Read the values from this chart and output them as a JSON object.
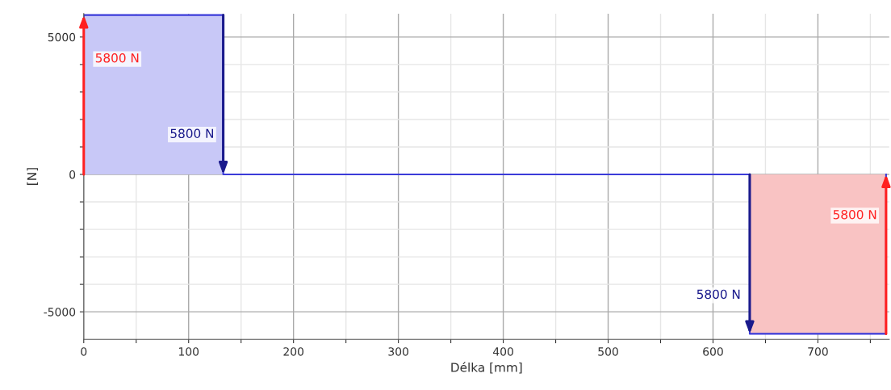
{
  "chart_data": {
    "type": "area",
    "xlabel": "Délka [mm]",
    "ylabel": "[N]",
    "xlim": [
      0,
      768
    ],
    "ylim": [
      -6000,
      5850
    ],
    "xticks": [
      0,
      {
        "value": 50,
        "label": null
      },
      100,
      {
        "value": 150,
        "label": null
      },
      200,
      {
        "value": 250,
        "label": null
      },
      300,
      {
        "value": 350,
        "label": null
      },
      400,
      {
        "value": 450,
        "label": null
      },
      500,
      {
        "value": 550,
        "label": null
      },
      600,
      {
        "value": 650,
        "label": null
      },
      700,
      {
        "value": 750,
        "label": null
      }
    ],
    "yticks": [
      -5000,
      {
        "value": -4000,
        "label": null
      },
      {
        "value": -3000,
        "label": null
      },
      {
        "value": -2000,
        "label": null
      },
      {
        "value": -1000,
        "label": null
      },
      0,
      {
        "value": 1000,
        "label": null
      },
      {
        "value": 2000,
        "label": null
      },
      {
        "value": 3000,
        "label": null
      },
      {
        "value": 4000,
        "label": null
      },
      5000
    ],
    "grid": true,
    "series": [
      {
        "color": "#c8c8f7",
        "x": [
          0,
          133
        ],
        "values": [
          5800,
          5800
        ]
      },
      {
        "color": "#f9c3c3",
        "x": [
          635,
          765
        ],
        "values": [
          -5800,
          -5800
        ]
      },
      {
        "type": "line",
        "color": "#3b3bd9",
        "x": [
          0,
          0,
          133,
          133,
          635,
          635,
          765,
          765
        ],
        "values": [
          0,
          5800,
          5800,
          0,
          0,
          -5800,
          -5800,
          0
        ]
      }
    ],
    "annotations": [
      {
        "text": "5800 N",
        "x": 0,
        "y": 4200
      },
      {
        "text": "5800 N",
        "x": 133,
        "y": 1450
      },
      {
        "text": "5800 N",
        "x": 635,
        "y": -4400
      },
      {
        "text": "5800 N",
        "x": 765,
        "y": -1500
      }
    ]
  }
}
